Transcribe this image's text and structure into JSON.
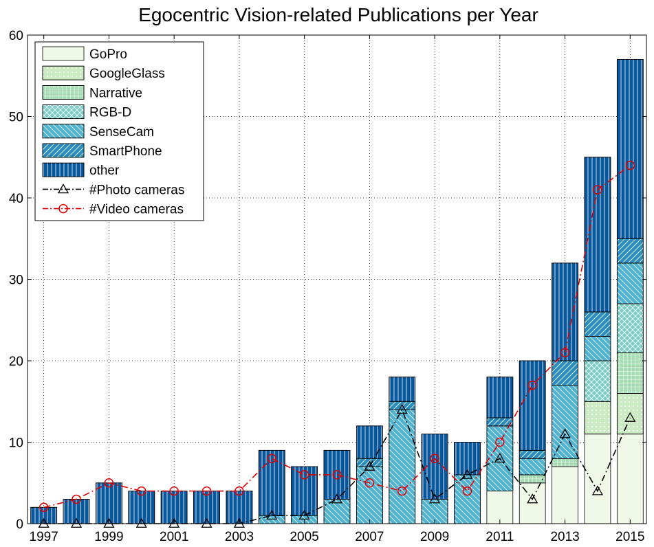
{
  "chart_data": {
    "type": "bar",
    "stacked": true,
    "title": "Egocentric Vision-related Publications per Year",
    "xlabel": "",
    "ylabel": "",
    "ylim": [
      0,
      60
    ],
    "yticks": [
      0,
      10,
      20,
      30,
      40,
      50,
      60
    ],
    "grid": true,
    "legend_position": "top-left",
    "categories": [
      "1997",
      "1998",
      "1999",
      "2000",
      "2001",
      "2002",
      "2003",
      "2004",
      "2005",
      "2006",
      "2007",
      "2008",
      "2009",
      "2010",
      "2011",
      "2012",
      "2013",
      "2014",
      "2015"
    ],
    "xtick_labels": [
      "1997",
      "1999",
      "2001",
      "2003",
      "2005",
      "2007",
      "2009",
      "2011",
      "2013",
      "2015"
    ],
    "series": [
      {
        "name": "GoPro",
        "color": "#f0f9e8",
        "pattern": "none",
        "values": [
          0,
          0,
          0,
          0,
          0,
          0,
          0,
          0,
          0,
          0,
          0,
          0,
          0,
          0,
          4,
          5,
          7,
          11,
          11
        ]
      },
      {
        "name": "GoogleGlass",
        "color": "#ccebc5",
        "pattern": "dots",
        "values": [
          0,
          0,
          0,
          0,
          0,
          0,
          0,
          0,
          0,
          0,
          0,
          0,
          0,
          0,
          0,
          0,
          0,
          4,
          5
        ]
      },
      {
        "name": "Narrative",
        "color": "#a8ddb5",
        "pattern": "grid",
        "values": [
          0,
          0,
          0,
          0,
          0,
          0,
          0,
          0,
          0,
          0,
          0,
          0,
          0,
          0,
          0,
          1,
          1,
          0,
          5
        ]
      },
      {
        "name": "RGB-D",
        "color": "#7bccc4",
        "pattern": "crosshatch",
        "values": [
          0,
          0,
          0,
          0,
          0,
          0,
          0,
          0,
          0,
          0,
          0,
          0,
          0,
          0,
          0,
          0,
          0,
          5,
          6
        ]
      },
      {
        "name": "SenseCam",
        "color": "#4eb3d3",
        "pattern": "backslash",
        "values": [
          0,
          0,
          0,
          0,
          0,
          0,
          0,
          1,
          1,
          3,
          7,
          14,
          3,
          6,
          8,
          2,
          9,
          3,
          5
        ]
      },
      {
        "name": "SmartPhone",
        "color": "#2b8cbe",
        "pattern": "slash",
        "values": [
          0,
          0,
          0,
          0,
          0,
          0,
          0,
          0,
          0,
          0,
          1,
          1,
          0,
          0,
          1,
          1,
          3,
          3,
          3
        ]
      },
      {
        "name": "other",
        "color": "#08589e",
        "pattern": "vlines",
        "values": [
          2,
          3,
          5,
          4,
          4,
          4,
          4,
          8,
          6,
          6,
          4,
          3,
          8,
          4,
          5,
          11,
          12,
          19,
          22
        ]
      }
    ],
    "lines": [
      {
        "name": "#Photo cameras",
        "color": "#000000",
        "marker": "triangle",
        "style": "dashdot",
        "values": [
          0,
          0,
          0,
          0,
          0,
          0,
          0,
          1,
          1,
          3,
          7,
          14,
          3,
          6,
          8,
          3,
          11,
          4,
          13
        ]
      },
      {
        "name": "#Video cameras",
        "color": "#e00000",
        "marker": "circle",
        "style": "dashdot",
        "values": [
          2,
          3,
          5,
          4,
          4,
          4,
          4,
          8,
          6,
          6,
          5,
          4,
          8,
          4,
          10,
          17,
          21,
          41,
          44
        ]
      }
    ]
  }
}
